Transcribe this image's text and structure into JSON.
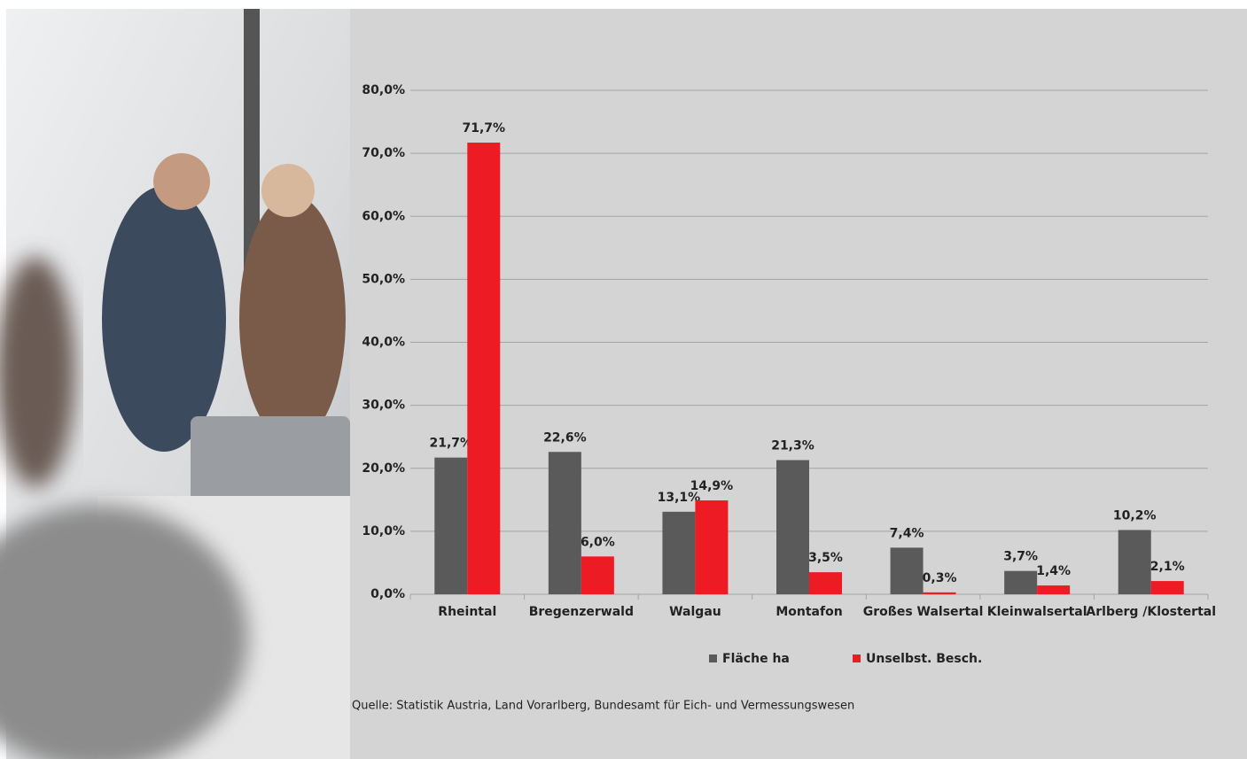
{
  "chart_data": {
    "type": "bar",
    "categories": [
      "Rheintal",
      "Bregenzerwald",
      "Walgau",
      "Montafon",
      "Großes Walsertal",
      "Kleinwalsertal",
      "Arlberg /Klostertal"
    ],
    "series": [
      {
        "name": "Fläche ha",
        "color": "#5a5a5a",
        "values": [
          21.7,
          22.6,
          13.1,
          21.3,
          7.4,
          3.7,
          10.2
        ],
        "value_labels": [
          "21,7%",
          "22,6%",
          "13,1%",
          "21,3%",
          "7,4%",
          "3,7%",
          "10,2%"
        ]
      },
      {
        "name": "Unselbst. Besch.",
        "color": "#ed1c24",
        "values": [
          71.7,
          6.0,
          14.9,
          3.5,
          0.3,
          1.4,
          2.1
        ],
        "value_labels": [
          "71,7%",
          "6,0%",
          "14,9%",
          "3,5%",
          "0,3%",
          "1,4%",
          "2,1%"
        ]
      }
    ],
    "ylim": [
      0,
      80
    ],
    "yticks": [
      {
        "value": 0,
        "label": "0,0%"
      },
      {
        "value": 10,
        "label": "10,0%"
      },
      {
        "value": 20,
        "label": "20,0%"
      },
      {
        "value": 30,
        "label": "30,0%"
      },
      {
        "value": 40,
        "label": "40,0%"
      },
      {
        "value": 50,
        "label": "50,0%"
      },
      {
        "value": 60,
        "label": "60,0%"
      },
      {
        "value": 70,
        "label": "70,0%"
      },
      {
        "value": 80,
        "label": "80,0%"
      }
    ],
    "grid": true,
    "legend": "bottom",
    "source": "Quelle: Statistik Austria, Land Vorarlberg, Bundesamt für Eich- und Vermessungswesen"
  }
}
